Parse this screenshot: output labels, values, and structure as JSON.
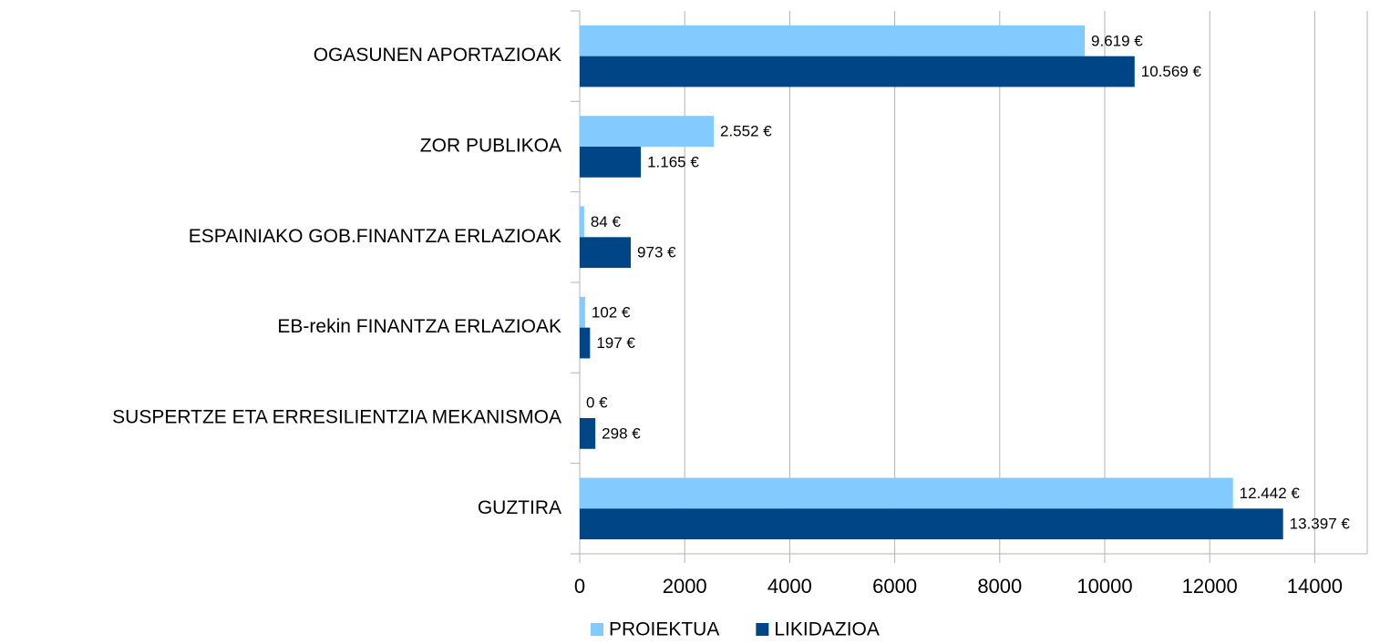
{
  "chart_data": {
    "type": "barh",
    "categories": [
      "OGASUNEN APORTAZIOAK",
      "ZOR PUBLIKOA",
      "ESPAINIAKO GOB.FINANTZA ERLAZIOAK",
      "EB-rekin FINANTZA ERLAZIOAK",
      "SUSPERTZE ETA ERRESILIENTZIA MEKANISMOA",
      "GUZTIRA"
    ],
    "series": [
      {
        "name": "PROIEKTUA",
        "color": "#83caff",
        "values": [
          9619,
          2552,
          84,
          102,
          0,
          12442
        ],
        "value_labels": [
          "9.619 €",
          "2.552 €",
          "84 €",
          "102 €",
          "0 €",
          "12.442 €"
        ]
      },
      {
        "name": "LIKIDAZIOA",
        "color": "#004586",
        "values": [
          10569,
          1165,
          973,
          197,
          298,
          13397
        ],
        "value_labels": [
          "10.569 €",
          "1.165 €",
          "973 €",
          "197 €",
          "298 €",
          "13.397 €"
        ]
      }
    ],
    "xlim": [
      0,
      15000
    ],
    "xticks": [
      0,
      2000,
      4000,
      6000,
      8000,
      10000,
      12000,
      14000
    ],
    "grid": true,
    "legend": "bottom"
  }
}
